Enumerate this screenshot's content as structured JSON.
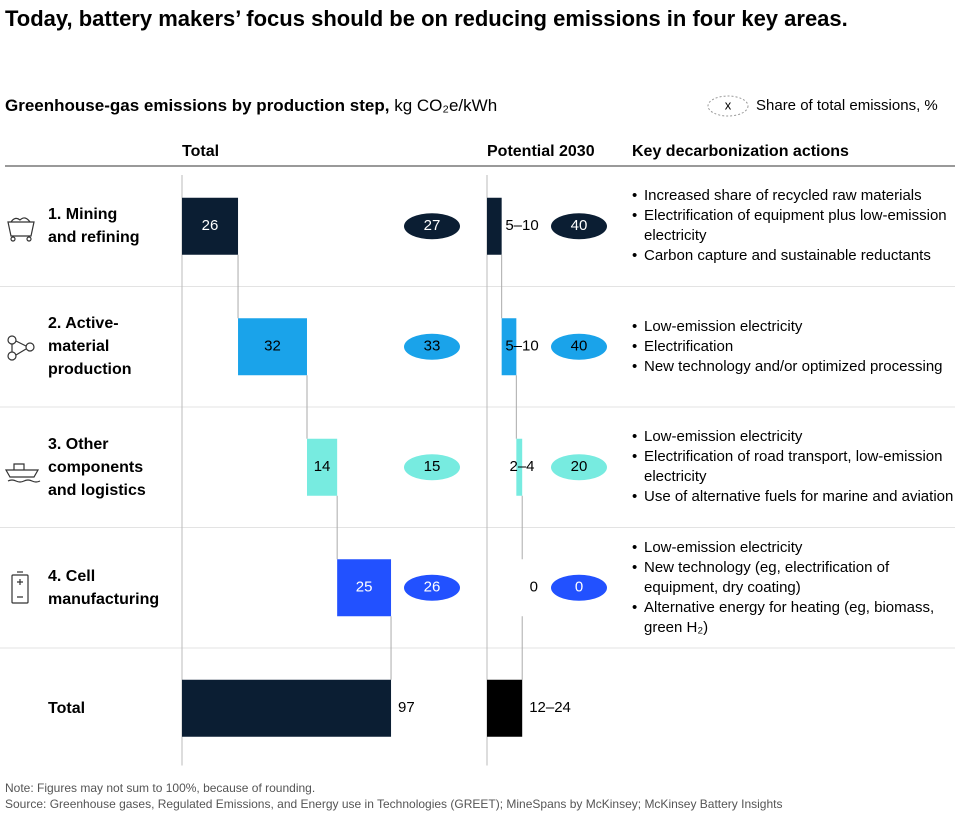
{
  "title": "Today, battery makers’ focus should be on reducing emissions in four key areas.",
  "chart_data": {
    "type": "waterfall",
    "subtitle": "Greenhouse-gas emissions by production step,",
    "unit": "kg CO₂e/kWh",
    "legend_marker": "x",
    "legend_label": "Share of total emissions, %",
    "column_headers": [
      "Total",
      "Potential 2030",
      "Key decarbonization actions"
    ],
    "categories": [
      "1. Mining\nand refining",
      "2. Active-\nmaterial\nproduction",
      "3. Other\ncomponents\nand logistics",
      "4. Cell\nmanufacturing"
    ],
    "colors": [
      "#0b1e33",
      "#1aa3ea",
      "#77ebe0",
      "#2251ff"
    ],
    "values": [
      26,
      32,
      14,
      25
    ],
    "shares": [
      27,
      33,
      15,
      26
    ],
    "potential_values": [
      10,
      10,
      4,
      0
    ],
    "potential_value_labels": [
      "5–10",
      "5–10",
      "2–4",
      "0"
    ],
    "potential_shares": [
      40,
      40,
      20,
      0
    ],
    "actions": [
      [
        "Increased share of recycled raw materials",
        "Electrification of equipment plus low-emission electricity",
        "Carbon capture and sustainable reductants"
      ],
      [
        "Low-emission electricity",
        "Electrification",
        "New technology and/or optimized processing"
      ],
      [
        "Low-emission electricity",
        "Electrification of road transport, low-emission electricity",
        "Use of alternative fuels for marine and aviation"
      ],
      [
        "Low-emission electricity",
        "New technology (eg, electrification of equipment, dry coating)",
        "Alternative energy for heating (eg, biomass, green H₂)"
      ]
    ],
    "total_label": "Total",
    "total_value": 97,
    "total_color": "#0b1e33",
    "total_potential": 24,
    "total_potential_label": "12–24",
    "total_potential_color": "#000000",
    "xlim": [
      0,
      100
    ],
    "potential_xlim": [
      0,
      60
    ]
  },
  "notes": [
    "Note: Figures may not sum to 100%, because of rounding.",
    "Source: Greenhouse gases, Regulated Emissions, and Energy use in Technologies (GREET); MineSpans by McKinsey; McKinsey Battery Insights"
  ]
}
